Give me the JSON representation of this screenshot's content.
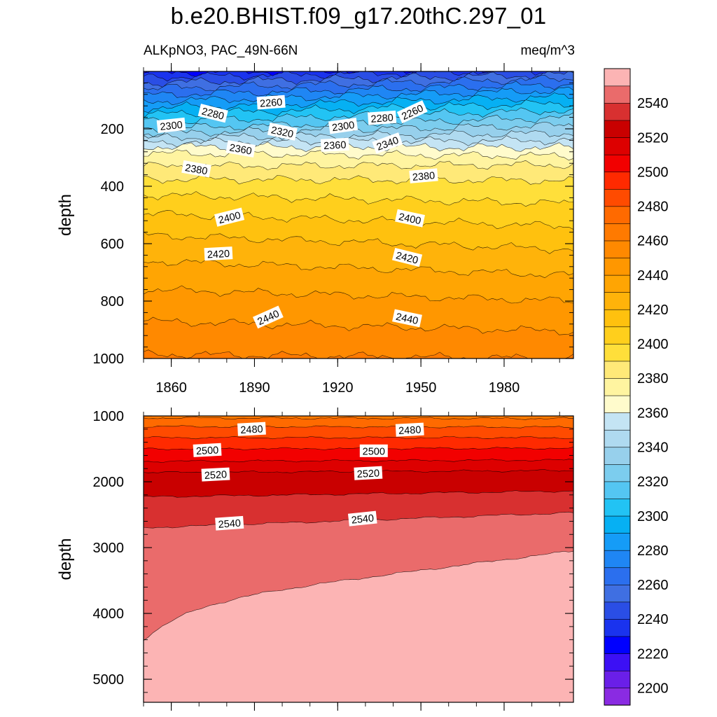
{
  "chart_data": {
    "type": "heatmap",
    "title": "b.e20.BHIST.f09_g17.20thC.297_01",
    "variable_label": "ALKpNO3, PAC_49N-66N",
    "units_label": "meq/m^3",
    "colorbar": {
      "levels": [
        2200,
        2210,
        2220,
        2230,
        2240,
        2250,
        2260,
        2270,
        2280,
        2290,
        2300,
        2310,
        2320,
        2330,
        2340,
        2350,
        2360,
        2370,
        2380,
        2390,
        2400,
        2410,
        2420,
        2430,
        2440,
        2450,
        2460,
        2470,
        2480,
        2490,
        2500,
        2510,
        2520,
        2530,
        2540,
        2550
      ],
      "tick_labels": [
        "2200",
        "2220",
        "2240",
        "2260",
        "2280",
        "2300",
        "2320",
        "2340",
        "2360",
        "2380",
        "2400",
        "2420",
        "2440",
        "2460",
        "2480",
        "2500",
        "2520",
        "2540"
      ],
      "colors": [
        "#8a2be2",
        "#6a1fe8",
        "#3c10f5",
        "#0000ff",
        "#1a33ee",
        "#2a4ee5",
        "#3f6fe2",
        "#2b6fee",
        "#1f86f4",
        "#159cf7",
        "#06b0f3",
        "#22c3f4",
        "#54c6f2",
        "#7ccdee",
        "#97d0ec",
        "#afdaf0",
        "#c4e4f4",
        "#fffbcc",
        "#fff4a0",
        "#ffe978",
        "#ffdf3a",
        "#ffcf1c",
        "#ffc10e",
        "#ffb30a",
        "#ffa503",
        "#ff9700",
        "#ff8900",
        "#ff7a00",
        "#ff6a00",
        "#ff4b00",
        "#ff2a00",
        "#f20000",
        "#dd0000",
        "#c90000",
        "#d83030",
        "#ea6b6b",
        "#fcb4b4"
      ]
    },
    "panels": [
      {
        "name": "upper",
        "ylabel": "depth",
        "ylim": [
          0,
          1000
        ],
        "yticks": [
          200,
          400,
          600,
          800,
          1000
        ],
        "ytick_labels": [
          "200",
          "400",
          "600",
          "800",
          "1000"
        ],
        "xlim": [
          1850,
          2005
        ],
        "xticks": [
          1860,
          1890,
          1920,
          1950,
          1980
        ],
        "xtick_labels": [
          "1860",
          "1890",
          "1920",
          "1950",
          "1980"
        ],
        "contour_labels": [
          {
            "text": "2260",
            "year": 1896,
            "depth": 110,
            "angle": -4
          },
          {
            "text": "2280",
            "year": 1875,
            "depth": 148,
            "angle": 14
          },
          {
            "text": "2300",
            "year": 1860,
            "depth": 190,
            "angle": -6
          },
          {
            "text": "2320",
            "year": 1900,
            "depth": 212,
            "angle": 12
          },
          {
            "text": "2300",
            "year": 1922,
            "depth": 192,
            "angle": -8
          },
          {
            "text": "2280",
            "year": 1936,
            "depth": 164,
            "angle": -4
          },
          {
            "text": "2260",
            "year": 1947,
            "depth": 143,
            "angle": -25
          },
          {
            "text": "2340",
            "year": 1938,
            "depth": 252,
            "angle": -20
          },
          {
            "text": "2360",
            "year": 1885,
            "depth": 272,
            "angle": 10
          },
          {
            "text": "2360",
            "year": 1919,
            "depth": 258,
            "angle": -3
          },
          {
            "text": "2380",
            "year": 1869,
            "depth": 342,
            "angle": 10
          },
          {
            "text": "2380",
            "year": 1951,
            "depth": 366,
            "angle": -5
          },
          {
            "text": "2400",
            "year": 1881,
            "depth": 510,
            "angle": -14
          },
          {
            "text": "2400",
            "year": 1946,
            "depth": 514,
            "angle": 12
          },
          {
            "text": "2420",
            "year": 1877,
            "depth": 637,
            "angle": -3
          },
          {
            "text": "2420",
            "year": 1945,
            "depth": 650,
            "angle": 14
          },
          {
            "text": "2440",
            "year": 1895,
            "depth": 858,
            "angle": -24
          },
          {
            "text": "2440",
            "year": 1945,
            "depth": 862,
            "angle": 12
          }
        ]
      },
      {
        "name": "lower",
        "ylabel": "depth",
        "ylim": [
          1000,
          5350
        ],
        "yticks": [
          1000,
          2000,
          3000,
          4000,
          5000
        ],
        "ytick_labels": [
          "1000",
          "2000",
          "3000",
          "4000",
          "5000"
        ],
        "xlim": [
          1850,
          2005
        ],
        "contour_labels": [
          {
            "text": "2480",
            "year": 1889,
            "depth": 1210,
            "angle": -3
          },
          {
            "text": "2480",
            "year": 1946,
            "depth": 1220,
            "angle": -3
          },
          {
            "text": "2500",
            "year": 1873,
            "depth": 1530,
            "angle": -3
          },
          {
            "text": "2500",
            "year": 1933,
            "depth": 1540,
            "angle": 0
          },
          {
            "text": "2520",
            "year": 1876,
            "depth": 1900,
            "angle": -3
          },
          {
            "text": "2520",
            "year": 1931,
            "depth": 1880,
            "angle": -3
          },
          {
            "text": "2540",
            "year": 1881,
            "depth": 2640,
            "angle": -4
          },
          {
            "text": "2540",
            "year": 1929,
            "depth": 2570,
            "angle": -6
          }
        ]
      }
    ]
  }
}
